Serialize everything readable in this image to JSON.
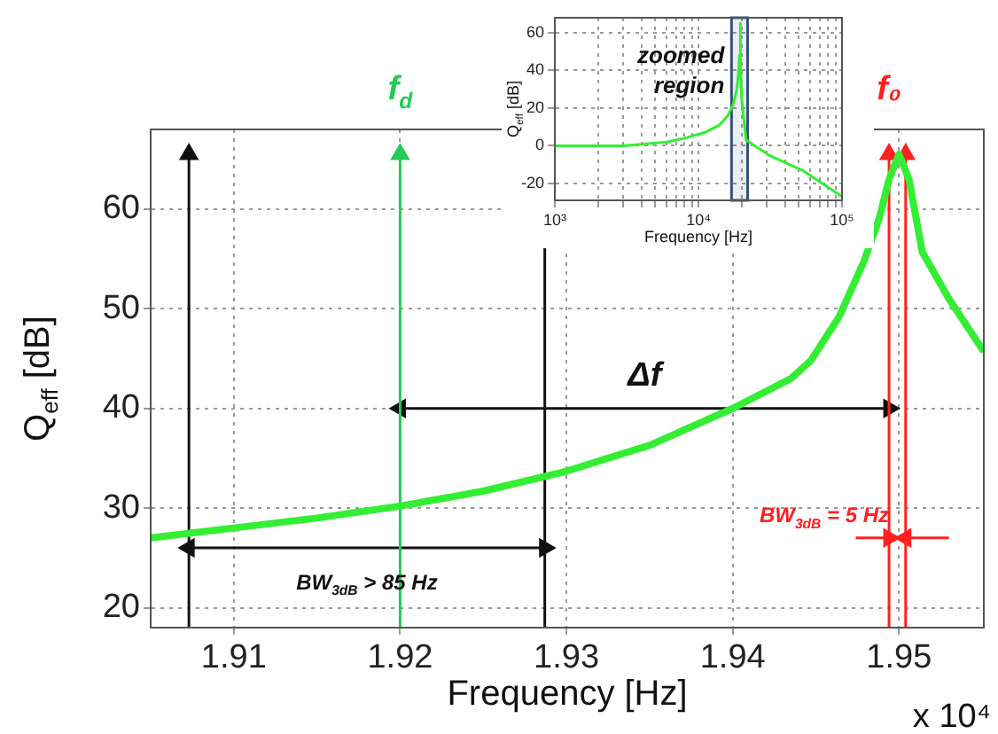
{
  "chart_data": [
    {
      "type": "line",
      "xlabel": "Frequency [Hz]",
      "ylabel": "Q$_{eff}$ [dB]",
      "xlim": [
        1.905,
        1.9551
      ],
      "ylim": [
        18,
        68
      ],
      "xticks": [
        1.91,
        1.92,
        1.93,
        1.94,
        1.95
      ],
      "yticks": [
        20,
        30,
        40,
        50,
        60
      ],
      "grid": true,
      "series": [
        {
          "color": "#33ee33",
          "x": [
            1.905,
            1.91,
            1.915,
            1.92,
            1.925,
            1.93,
            1.935,
            1.94,
            1.9435,
            1.9447,
            1.9464,
            1.9479,
            1.9488,
            1.9494,
            1.95,
            1.9506,
            1.9514,
            1.953,
            1.9551
          ],
          "values": [
            27,
            28,
            29,
            30.2,
            31.7,
            33.7,
            36.3,
            40,
            43,
            44.8,
            49.2,
            54.8,
            59,
            63,
            65.5,
            63,
            55.7,
            51,
            45.7
          ]
        },
        {
          "color": "#111111",
          "x": [
            1.9073,
            1.9073
          ],
          "values": [
            18,
            65.5
          ],
          "marker": "triangle"
        },
        {
          "name": "f$_{d}$",
          "color": "#22cc55",
          "x": [
            1.92,
            1.92
          ],
          "values": [
            18,
            65.5
          ],
          "marker": "triangle"
        },
        {
          "name": "f₀",
          "color": "#ff2020",
          "x": [
            1.9494,
            1.9494
          ],
          "values": [
            18,
            65.5
          ],
          "marker": "triangle"
        },
        {
          "color": "#ff2020",
          "x": [
            1.9504,
            1.9504
          ],
          "values": [
            18,
            65.5
          ],
          "marker": "triangle"
        },
        {
          "name": "Δf",
          "color": "#111111",
          "x": [
            1.92,
            1.9494
          ],
          "values": [
            40,
            40
          ],
          "marker": "triangle"
        },
        {
          "name": "BW$_{3dB}$ > 85 Hz",
          "color": "#111111",
          "x": [
            1.9073,
            1.9287
          ],
          "values": [
            26,
            26
          ],
          "marker": "triangle"
        },
        {
          "name": "BW$_{3dB}$ = 5 Hz",
          "color": "#ff2020",
          "x": [
            1.9474,
            1.9494
          ],
          "values": [
            27,
            27
          ],
          "marker": "triangle"
        },
        {
          "color": "#ff2020",
          "x": [
            1.953,
            1.9504
          ],
          "values": [
            27,
            27
          ],
          "marker": "triangle"
        }
      ],
      "ref_lines": [
        {
          "axis": "x",
          "value": 1.9287,
          "color": "#111111"
        }
      ],
      "annotations": [
        "x 10⁴"
      ]
    },
    {
      "type": "line",
      "xlabel": "Frequency [Hz]",
      "ylabel": "Q$_{eff}$ [dB]",
      "log": "x",
      "xlim": [
        1000,
        100000
      ],
      "ylim": [
        -29,
        68
      ],
      "xticks": [
        {
          "value": 1000,
          "label": "10³"
        },
        {
          "value": 2000,
          "label": null
        },
        {
          "value": 3000,
          "label": null
        },
        {
          "value": 4000,
          "label": null
        },
        {
          "value": 5000,
          "label": null
        },
        {
          "value": 6000,
          "label": null
        },
        {
          "value": 7000,
          "label": null
        },
        {
          "value": 8000,
          "label": null
        },
        {
          "value": 9000,
          "label": null
        },
        {
          "value": 10000,
          "label": "10⁴"
        },
        {
          "value": 20000,
          "label": null
        },
        {
          "value": 30000,
          "label": null
        },
        {
          "value": 40000,
          "label": null
        },
        {
          "value": 50000,
          "label": null
        },
        {
          "value": 60000,
          "label": null
        },
        {
          "value": 70000,
          "label": null
        },
        {
          "value": 80000,
          "label": null
        },
        {
          "value": 90000,
          "label": null
        },
        {
          "value": 100000,
          "label": "10⁵"
        }
      ],
      "yticks": [
        -20,
        0,
        20,
        40,
        60
      ],
      "grid": true,
      "series": [
        {
          "color": "#33ee33",
          "x": [
            1000,
            3000,
            6000,
            8000,
            11000,
            14000,
            16000,
            17500,
            18500,
            19000,
            19300,
            19500,
            19700,
            20000,
            21500,
            31000,
            53000,
            100000
          ],
          "values": [
            0,
            0,
            2,
            4,
            7,
            11,
            16,
            22,
            30,
            38,
            48,
            65,
            45,
            25,
            3,
            -5,
            -13,
            -27
          ]
        }
      ],
      "bands": [
        {
          "axis": "x",
          "from": 17000,
          "to": 22000,
          "label": "zoomed region",
          "color": "#34507a"
        }
      ]
    }
  ]
}
